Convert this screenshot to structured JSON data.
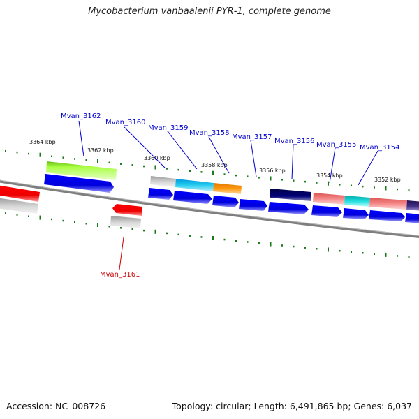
{
  "title": "Mycobacterium vanbaalenii PYR-1, complete genome",
  "accession": "Accession: NC_008726",
  "summary": "Topology: circular; Length: 6,491,865 bp; Genes: 6,037",
  "colors": {
    "label_blue": "#0000cc",
    "label_red": "#cc0000",
    "tick_green": "#1a7a1a",
    "cds_blue": "#0000ee",
    "cds_red": "#ee0000",
    "backbone": "#888888"
  },
  "kbp_labels": [
    {
      "text": "3364 kbp",
      "pos": 3364
    },
    {
      "text": "3362 kbp",
      "pos": 3362
    },
    {
      "text": "3360 kbp",
      "pos": 3360
    },
    {
      "text": "3358 kbp",
      "pos": 3358
    },
    {
      "text": "3356 kbp",
      "pos": 3356
    },
    {
      "text": "3354 kbp",
      "pos": 3354
    },
    {
      "text": "3352 kbp",
      "pos": 3352
    }
  ],
  "gene_labels": [
    {
      "text": "Mvan_3162",
      "color": "#0000cc"
    },
    {
      "text": "Mvan_3160",
      "color": "#0000cc"
    },
    {
      "text": "Mvan_3159",
      "color": "#0000cc"
    },
    {
      "text": "Mvan_3158",
      "color": "#0000cc"
    },
    {
      "text": "Mvan_3157",
      "color": "#0000cc"
    },
    {
      "text": "Mvan_3156",
      "color": "#0000cc"
    },
    {
      "text": "Mvan_3155",
      "color": "#0000cc"
    },
    {
      "text": "Mvan_3154",
      "color": "#0000cc"
    },
    {
      "text": "Mvan_3161",
      "color": "#cc0000"
    }
  ]
}
